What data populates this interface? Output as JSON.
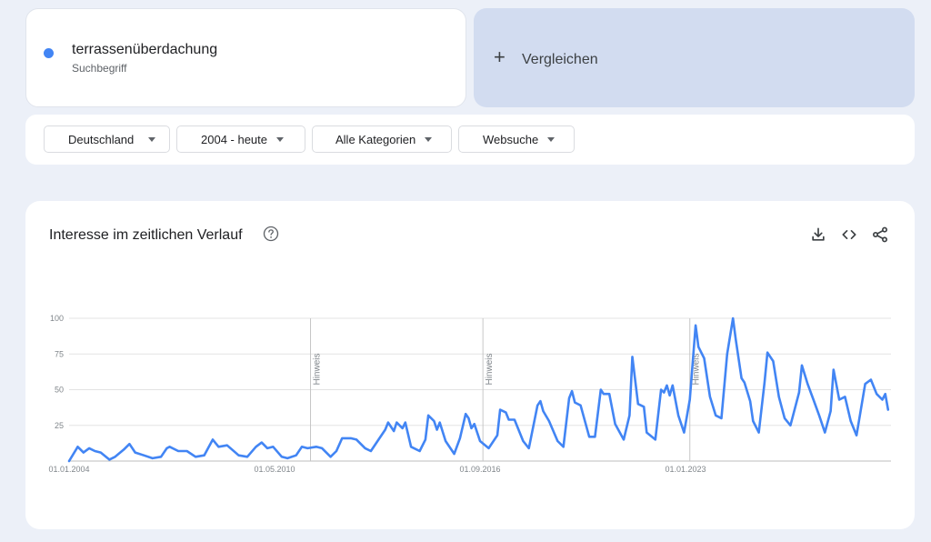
{
  "search_term": {
    "name": "terrassenüberdachung",
    "type": "Suchbegriff",
    "color": "#4285f4"
  },
  "compare": {
    "label": "Vergleichen"
  },
  "filters": [
    {
      "label": "Deutschland"
    },
    {
      "label": "2004 - heute"
    },
    {
      "label": "Alle Kategorien"
    },
    {
      "label": "Websuche"
    }
  ],
  "chart_card": {
    "title": "Interesse im zeitlichen Verlauf"
  },
  "icons": [
    "help-icon",
    "download-icon",
    "embed-icon",
    "share-icon"
  ],
  "chart_data": {
    "type": "line",
    "title": "Interesse im zeitlichen Verlauf",
    "xlabel": "",
    "ylabel": "",
    "ylim": [
      0,
      100
    ],
    "yticks": [
      25,
      50,
      75,
      100
    ],
    "x_tick_labels": [
      "01.01.2004",
      "01.05.2010",
      "01.09.2016",
      "01.01.2023"
    ],
    "grid": true,
    "annotations": [
      {
        "label": "Hinweis",
        "x": "2011-01"
      },
      {
        "label": "Hinweis",
        "x": "2016-01"
      },
      {
        "label": "Hinweis",
        "x": "2022-01"
      }
    ],
    "series": [
      {
        "name": "terrassenüberdachung",
        "color": "#4285f4",
        "points": [
          [
            "2004-01",
            0
          ],
          [
            "2004-04",
            10
          ],
          [
            "2004-06",
            6
          ],
          [
            "2004-08",
            9
          ],
          [
            "2004-10",
            7
          ],
          [
            "2004-12",
            6
          ],
          [
            "2005-03",
            1
          ],
          [
            "2005-05",
            3
          ],
          [
            "2005-08",
            8
          ],
          [
            "2005-10",
            12
          ],
          [
            "2005-12",
            6
          ],
          [
            "2006-03",
            4
          ],
          [
            "2006-06",
            2
          ],
          [
            "2006-09",
            3
          ],
          [
            "2006-11",
            9
          ],
          [
            "2006-12",
            10
          ],
          [
            "2007-03",
            7
          ],
          [
            "2007-06",
            7
          ],
          [
            "2007-09",
            3
          ],
          [
            "2007-12",
            4
          ],
          [
            "2008-03",
            15
          ],
          [
            "2008-05",
            10
          ],
          [
            "2008-08",
            11
          ],
          [
            "2008-12",
            4
          ],
          [
            "2009-03",
            3
          ],
          [
            "2009-06",
            10
          ],
          [
            "2009-08",
            13
          ],
          [
            "2009-10",
            9
          ],
          [
            "2009-12",
            10
          ],
          [
            "2010-03",
            3
          ],
          [
            "2010-05",
            2
          ],
          [
            "2010-08",
            4
          ],
          [
            "2010-10",
            10
          ],
          [
            "2010-12",
            9
          ],
          [
            "2011-03",
            10
          ],
          [
            "2011-05",
            9
          ],
          [
            "2011-08",
            3
          ],
          [
            "2011-10",
            7
          ],
          [
            "2011-12",
            16
          ],
          [
            "2012-03",
            16
          ],
          [
            "2012-05",
            15
          ],
          [
            "2012-08",
            9
          ],
          [
            "2012-10",
            7
          ],
          [
            "2012-12",
            13
          ],
          [
            "2013-03",
            22
          ],
          [
            "2013-04",
            27
          ],
          [
            "2013-06",
            21
          ],
          [
            "2013-07",
            27
          ],
          [
            "2013-09",
            23
          ],
          [
            "2013-10",
            27
          ],
          [
            "2013-12",
            10
          ],
          [
            "2014-03",
            7
          ],
          [
            "2014-05",
            15
          ],
          [
            "2014-06",
            32
          ],
          [
            "2014-08",
            28
          ],
          [
            "2014-09",
            22
          ],
          [
            "2014-10",
            27
          ],
          [
            "2014-12",
            14
          ],
          [
            "2015-03",
            5
          ],
          [
            "2015-05",
            16
          ],
          [
            "2015-07",
            33
          ],
          [
            "2015-08",
            30
          ],
          [
            "2015-09",
            23
          ],
          [
            "2015-10",
            26
          ],
          [
            "2015-12",
            14
          ],
          [
            "2016-03",
            9
          ],
          [
            "2016-06",
            18
          ],
          [
            "2016-07",
            36
          ],
          [
            "2016-09",
            34
          ],
          [
            "2016-10",
            29
          ],
          [
            "2016-12",
            29
          ],
          [
            "2017-03",
            14
          ],
          [
            "2017-05",
            9
          ],
          [
            "2017-08",
            39
          ],
          [
            "2017-09",
            42
          ],
          [
            "2017-10",
            35
          ],
          [
            "2017-12",
            28
          ],
          [
            "2018-03",
            14
          ],
          [
            "2018-05",
            10
          ],
          [
            "2018-07",
            44
          ],
          [
            "2018-08",
            49
          ],
          [
            "2018-09",
            41
          ],
          [
            "2018-11",
            39
          ],
          [
            "2019-02",
            17
          ],
          [
            "2019-04",
            17
          ],
          [
            "2019-06",
            50
          ],
          [
            "2019-07",
            47
          ],
          [
            "2019-09",
            47
          ],
          [
            "2019-11",
            26
          ],
          [
            "2020-02",
            15
          ],
          [
            "2020-04",
            32
          ],
          [
            "2020-05",
            73
          ],
          [
            "2020-07",
            40
          ],
          [
            "2020-09",
            38
          ],
          [
            "2020-10",
            20
          ],
          [
            "2021-01",
            15
          ],
          [
            "2021-03",
            50
          ],
          [
            "2021-04",
            48
          ],
          [
            "2021-05",
            53
          ],
          [
            "2021-06",
            46
          ],
          [
            "2021-07",
            53
          ],
          [
            "2021-09",
            32
          ],
          [
            "2021-11",
            20
          ],
          [
            "2022-01",
            43
          ],
          [
            "2022-03",
            95
          ],
          [
            "2022-04",
            80
          ],
          [
            "2022-06",
            72
          ],
          [
            "2022-08",
            45
          ],
          [
            "2022-10",
            32
          ],
          [
            "2022-12",
            30
          ],
          [
            "2023-02",
            75
          ],
          [
            "2023-04",
            100
          ],
          [
            "2023-05",
            85
          ],
          [
            "2023-07",
            58
          ],
          [
            "2023-08",
            55
          ],
          [
            "2023-10",
            42
          ],
          [
            "2023-11",
            28
          ],
          [
            "2024-01",
            20
          ],
          [
            "2024-03",
            55
          ],
          [
            "2024-04",
            76
          ],
          [
            "2024-05",
            73
          ],
          [
            "2024-06",
            70
          ],
          [
            "2024-08",
            45
          ],
          [
            "2024-10",
            30
          ],
          [
            "2024-12",
            25
          ],
          [
            "2025-03",
            48
          ],
          [
            "2025-04",
            67
          ],
          [
            "2025-06",
            54
          ],
          [
            "2025-08",
            43
          ],
          [
            "2025-10",
            32
          ],
          [
            "2025-12",
            20
          ],
          [
            "2026-02",
            35
          ],
          [
            "2026-03",
            64
          ],
          [
            "2026-05",
            43
          ],
          [
            "2026-07",
            45
          ],
          [
            "2026-09",
            28
          ],
          [
            "2026-11",
            18
          ],
          [
            "2027-02",
            54
          ],
          [
            "2027-04",
            57
          ],
          [
            "2027-06",
            47
          ],
          [
            "2027-08",
            43
          ],
          [
            "2027-09",
            47
          ],
          [
            "2027-10",
            36
          ]
        ]
      }
    ]
  }
}
